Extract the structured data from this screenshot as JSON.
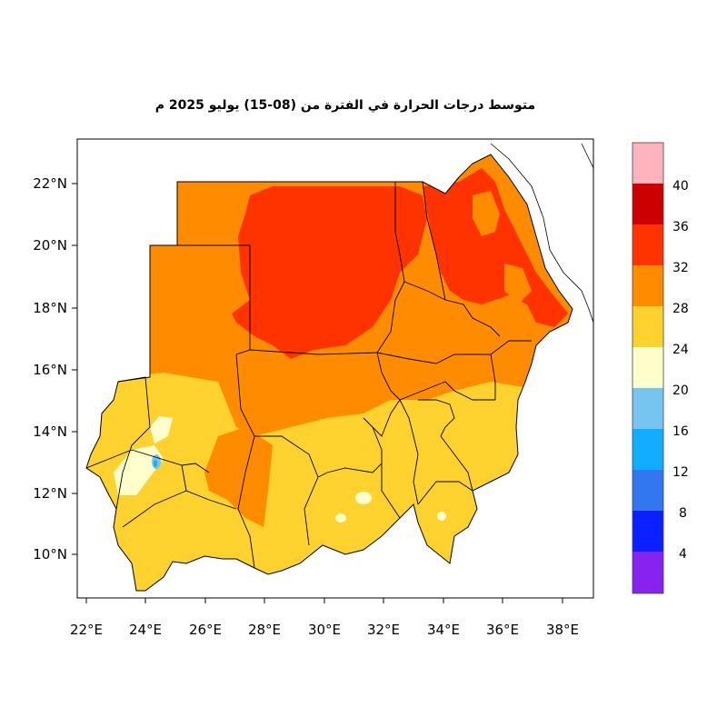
{
  "title": "متوسط درجات الحرارة في الفترة من (08-15) يوليو 2025 م",
  "colors": {
    "c40": "#ffb3bc",
    "c36": "#cc0000",
    "c32": "#ff3300",
    "c28": "#ff8c00",
    "c24": "#fdd22e",
    "c20": "#ffffcc",
    "c16": "#75c5f0",
    "c12": "#11adff",
    "c8": "#3377f0",
    "c4": "#0b20ff",
    "c0": "#8822ee",
    "border": "#000000"
  },
  "legend": {
    "labels": [
      "40",
      "36",
      "32",
      "28",
      "24",
      "20",
      "16",
      "12",
      "8",
      "4"
    ],
    "bins": [
      "c40",
      "c36",
      "c32",
      "c28",
      "c24",
      "c20",
      "c16",
      "c12",
      "c8",
      "c4",
      "c0"
    ]
  },
  "axes": {
    "x_ticks": [
      "22°E",
      "24°E",
      "26°E",
      "28°E",
      "30°E",
      "32°E",
      "34°E",
      "36°E",
      "38°E"
    ],
    "y_ticks": [
      "22°N",
      "20°N",
      "18°N",
      "16°N",
      "14°N",
      "12°N",
      "10°N"
    ]
  }
}
